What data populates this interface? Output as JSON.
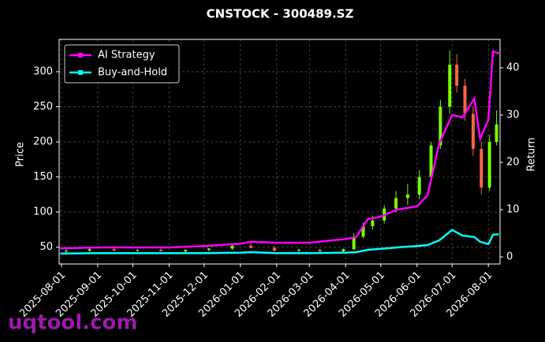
{
  "chart_data": {
    "type": "candlestick-with-returns",
    "title": "CNSTOCK - 300489.SZ",
    "ylabel": "Price",
    "y2label": "Return",
    "watermark": "uqtool.com",
    "xlim": [
      "2025-07-30",
      "2026-08-11"
    ],
    "xticks": [
      "2025-08-01",
      "2025-09-01",
      "2025-10-01",
      "2025-11-01",
      "2025-12-01",
      "2026-01-01",
      "2026-02-01",
      "2026-03-01",
      "2026-04-01",
      "2026-05-01",
      "2026-06-01",
      "2026-07-01",
      "2026-08-01"
    ],
    "ylim": [
      26,
      346
    ],
    "yticks": [
      50,
      100,
      150,
      200,
      250,
      300
    ],
    "y2lim": [
      -1.5,
      46
    ],
    "y2ticks": [
      0,
      10,
      20,
      30,
      40
    ],
    "grid": true,
    "legend": "upper left",
    "candles": {
      "up_color": "#7cfc00",
      "down_color": "#ff6347",
      "x": [
        "2025-08-05",
        "2025-08-25",
        "2025-09-15",
        "2025-10-05",
        "2025-10-25",
        "2025-11-15",
        "2025-12-05",
        "2025-12-25",
        "2026-01-10",
        "2026-01-30",
        "2026-02-20",
        "2026-03-10",
        "2026-03-30",
        "2026-04-08",
        "2026-04-16",
        "2026-04-24",
        "2026-05-04",
        "2026-05-14",
        "2026-05-24",
        "2026-06-03",
        "2026-06-13",
        "2026-06-21",
        "2026-06-29",
        "2026-07-05",
        "2026-07-12",
        "2026-07-19",
        "2026-07-26",
        "2026-08-02",
        "2026-08-08"
      ],
      "open": [
        44,
        45,
        47,
        45,
        46,
        44,
        46,
        48,
        52,
        49,
        45,
        46,
        44,
        47,
        65,
        80,
        88,
        105,
        120,
        125,
        150,
        195,
        250,
        310,
        280,
        240,
        190,
        135,
        200
      ],
      "high": [
        47,
        48,
        49,
        47,
        48,
        47,
        49,
        55,
        56,
        52,
        48,
        48,
        48,
        70,
        85,
        95,
        110,
        130,
        140,
        160,
        200,
        260,
        330,
        325,
        290,
        250,
        200,
        210,
        245
      ],
      "low": [
        42,
        43,
        44,
        43,
        44,
        42,
        44,
        46,
        48,
        44,
        42,
        42,
        42,
        46,
        62,
        75,
        84,
        100,
        110,
        118,
        145,
        190,
        240,
        270,
        230,
        180,
        125,
        130,
        195
      ],
      "close": [
        45,
        47,
        45,
        46,
        44,
        46,
        48,
        52,
        49,
        45,
        46,
        44,
        47,
        65,
        80,
        88,
        105,
        120,
        125,
        150,
        195,
        250,
        310,
        280,
        240,
        190,
        135,
        200,
        225
      ]
    },
    "x": [
      "2025-07-31",
      "2025-09-01",
      "2025-10-01",
      "2025-11-01",
      "2025-12-01",
      "2026-01-01",
      "2026-01-10",
      "2026-02-01",
      "2026-03-01",
      "2026-04-01",
      "2026-04-10",
      "2026-04-20",
      "2026-05-01",
      "2026-05-15",
      "2026-06-01",
      "2026-06-10",
      "2026-06-20",
      "2026-07-01",
      "2026-07-10",
      "2026-07-20",
      "2026-07-25",
      "2026-08-01",
      "2026-08-05",
      "2026-08-10"
    ],
    "series": [
      {
        "name": "AI Strategy",
        "color": "#ff00ff",
        "axis": "y2",
        "values": [
          1.8,
          2,
          2,
          2,
          2.3,
          2.8,
          3.2,
          3,
          3,
          3.8,
          4.2,
          8,
          8.5,
          10,
          10.7,
          13,
          24,
          30,
          29.5,
          33.5,
          25,
          29,
          43.5,
          43
        ]
      },
      {
        "name": "Buy-and-Hold",
        "color": "#00ffff",
        "axis": "y2",
        "values": [
          0.7,
          0.8,
          0.8,
          0.8,
          0.8,
          0.9,
          1,
          0.8,
          0.8,
          0.9,
          1,
          1.5,
          1.7,
          2,
          2.3,
          2.5,
          3.5,
          5.7,
          4.5,
          4.2,
          3.2,
          2.7,
          4.7,
          4.8
        ]
      }
    ]
  }
}
